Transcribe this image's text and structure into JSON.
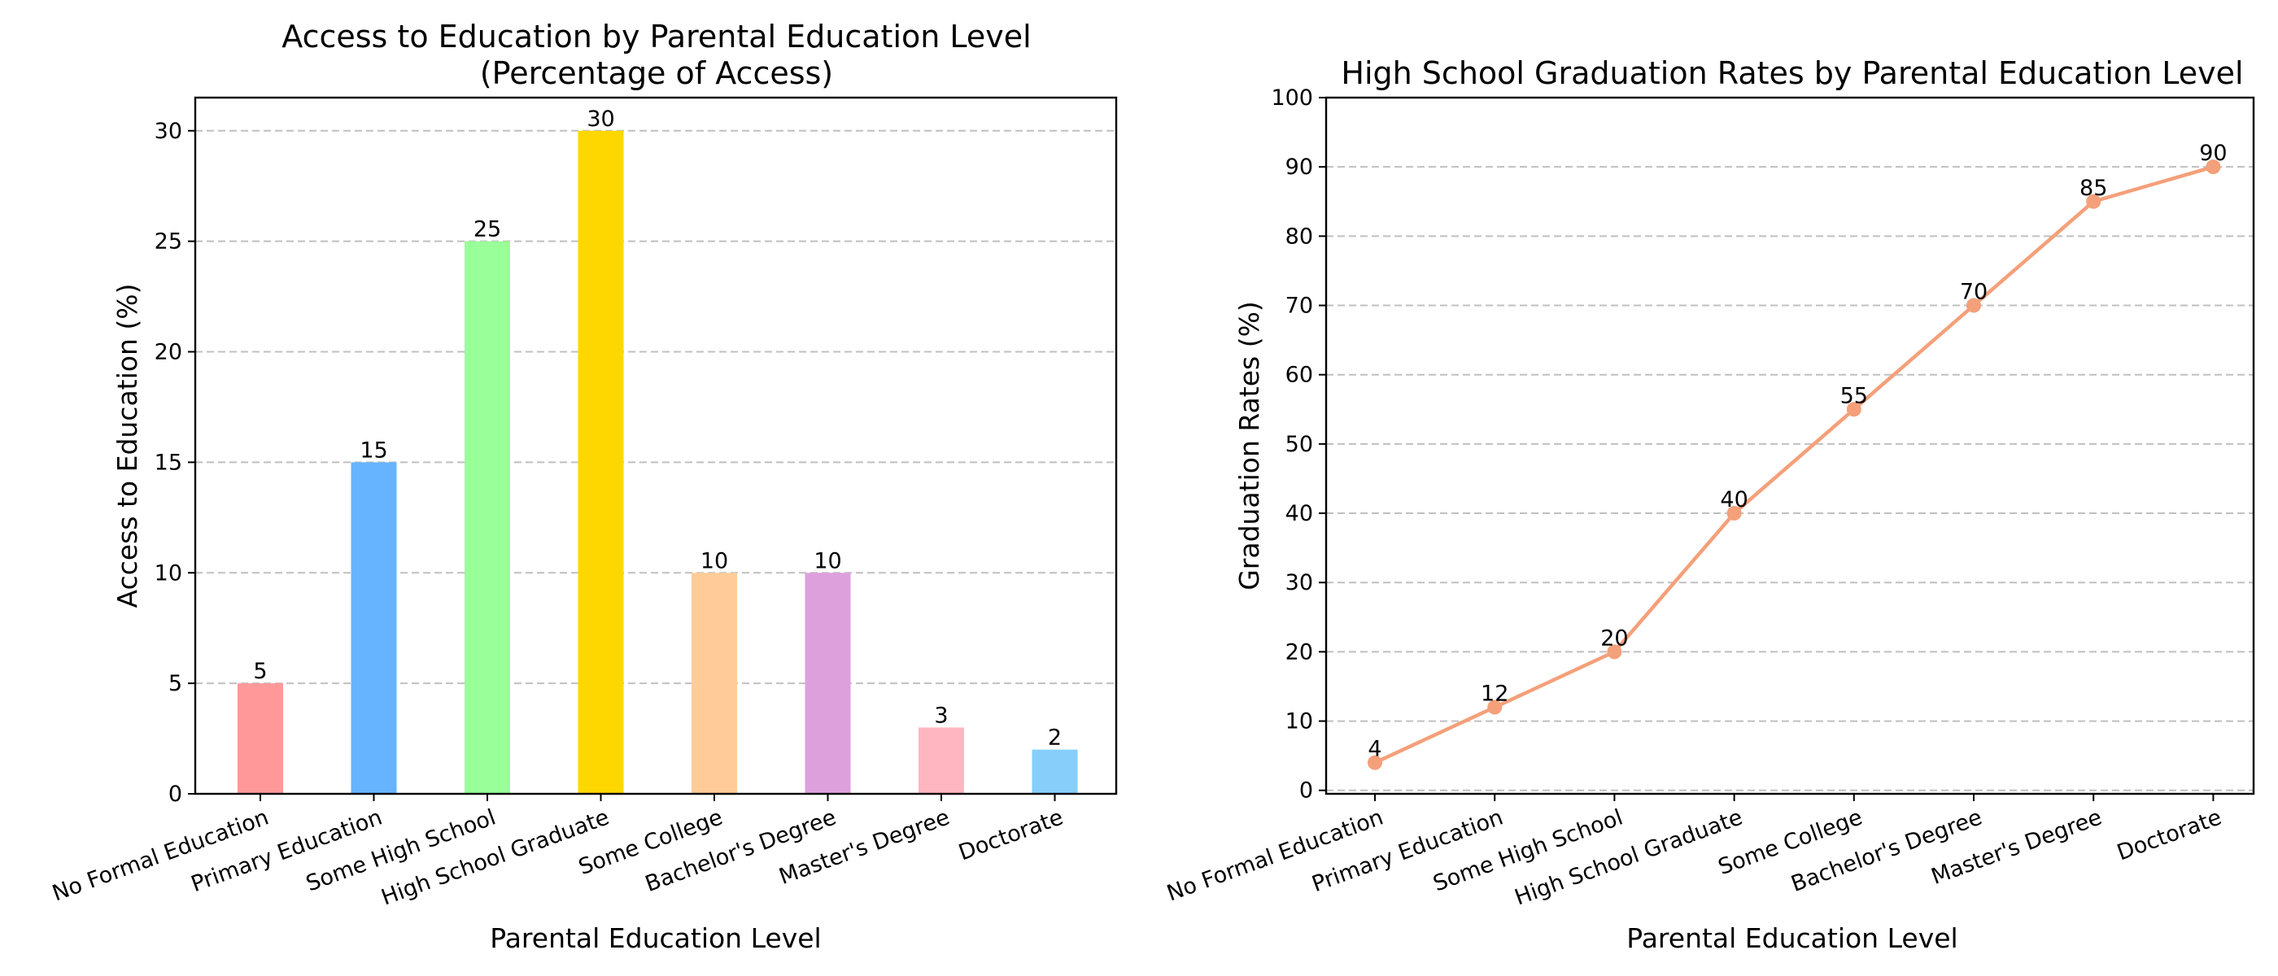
{
  "chart_data": [
    {
      "type": "bar",
      "title_line1": "Access to Education by Parental Education Level",
      "title_line2": "(Percentage of Access)",
      "xlabel": "Parental Education Level",
      "ylabel": "Access to Education (%)",
      "categories": [
        "No Formal Education",
        "Primary Education",
        "Some High School",
        "High School Graduate",
        "Some College",
        "Bachelor's Degree",
        "Master's Degree",
        "Doctorate"
      ],
      "values": [
        5,
        15,
        25,
        30,
        10,
        10,
        3,
        2
      ],
      "colors": [
        "#ff9999",
        "#66b3ff",
        "#99ff99",
        "#ffd700",
        "#ffcc99",
        "#dda0dd",
        "#ffb6c1",
        "#87cefa"
      ],
      "ylim": [
        0,
        31.5
      ],
      "yticks": [
        0,
        5,
        10,
        15,
        20,
        25,
        30
      ],
      "grid": "y-dashed"
    },
    {
      "type": "line",
      "title": "High School Graduation Rates by Parental Education Level",
      "xlabel": "Parental Education Level",
      "ylabel": "Graduation Rates (%)",
      "categories": [
        "No Formal Education",
        "Primary Education",
        "Some High School",
        "High School Graduate",
        "Some College",
        "Bachelor's Degree",
        "Master's Degree",
        "Doctorate"
      ],
      "values": [
        4,
        12,
        20,
        40,
        55,
        70,
        85,
        90
      ],
      "color": "#f4a07a",
      "ylim": [
        0,
        100
      ],
      "yticks": [
        0,
        10,
        20,
        30,
        40,
        50,
        60,
        70,
        80,
        90,
        100
      ],
      "grid": "y-dashed",
      "marker": "circle"
    }
  ]
}
